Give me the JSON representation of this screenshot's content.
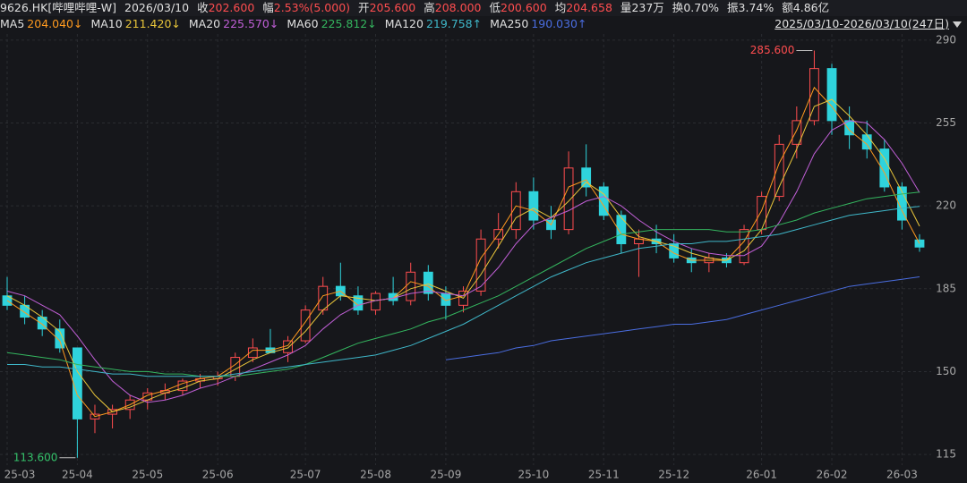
{
  "header": {
    "symbol": "9626.HK[哔哩哔哩-W]",
    "date": "2026/03/10",
    "items": [
      {
        "label": "收",
        "value": "202.600",
        "color": "#ff4d4f"
      },
      {
        "label": "幅",
        "value": "2.53%(5.000)",
        "color": "#ff4d4f"
      },
      {
        "label": "开",
        "value": "205.600",
        "color": "#ff4d4f"
      },
      {
        "label": "高",
        "value": "208.000",
        "color": "#ff4d4f"
      },
      {
        "label": "低",
        "value": "200.600",
        "color": "#ff4d4f"
      },
      {
        "label": "均",
        "value": "204.658",
        "color": "#ff4d4f"
      },
      {
        "label": "量",
        "value": "237万",
        "color": "#e0e0e0"
      },
      {
        "label": "换",
        "value": "0.70%",
        "color": "#e0e0e0"
      },
      {
        "label": "振",
        "value": "3.74%",
        "color": "#e0e0e0"
      },
      {
        "label": "额",
        "value": "4.86亿",
        "color": "#e0e0e0"
      }
    ],
    "range": "2025/03/10-2026/03/10(247日)"
  },
  "chart_data": {
    "type": "candlestick",
    "categories": [
      "25-03",
      null,
      null,
      null,
      "25-04",
      null,
      null,
      null,
      "25-05",
      null,
      null,
      null,
      "25-06",
      null,
      null,
      null,
      null,
      "25-07",
      null,
      null,
      null,
      "25-08",
      null,
      null,
      null,
      "25-09",
      null,
      null,
      null,
      null,
      "25-10",
      null,
      null,
      null,
      "25-11",
      null,
      null,
      null,
      "25-12",
      null,
      null,
      null,
      null,
      "26-01",
      null,
      null,
      null,
      "26-02",
      null,
      null,
      null,
      "26-03",
      null
    ],
    "open": [
      182,
      178,
      173,
      168,
      160,
      130,
      132,
      134,
      138,
      141,
      142,
      146,
      147,
      148,
      156,
      160,
      158,
      163,
      176,
      186,
      182,
      176,
      183,
      180,
      192,
      183,
      178,
      184,
      206,
      210,
      226,
      214,
      210,
      236,
      228,
      216,
      204,
      206,
      204,
      198,
      196,
      198,
      196,
      210,
      224,
      246,
      256,
      278,
      256,
      250,
      244,
      228,
      205.6
    ],
    "high": [
      190,
      182,
      176,
      172,
      160,
      136,
      136,
      140,
      143,
      145,
      147,
      149,
      150,
      158,
      164,
      168,
      165,
      178,
      190,
      196,
      186,
      184,
      190,
      196,
      195,
      186,
      186,
      210,
      217,
      230,
      232,
      220,
      243,
      246,
      230,
      218,
      210,
      212,
      208,
      202,
      200,
      200,
      212,
      226,
      250,
      262,
      285.6,
      280,
      262,
      256,
      248,
      230,
      208
    ],
    "low": [
      176,
      170,
      165,
      158,
      113.6,
      124,
      126,
      130,
      134,
      138,
      140,
      143,
      144,
      146,
      154,
      158,
      154,
      162,
      174,
      180,
      174,
      174,
      178,
      178,
      180,
      172,
      175,
      182,
      202,
      206,
      210,
      206,
      208,
      224,
      214,
      200,
      190,
      200,
      196,
      192,
      192,
      194,
      195,
      208,
      222,
      240,
      254,
      250,
      244,
      240,
      226,
      210,
      200.6
    ],
    "close": [
      178,
      173,
      168,
      160,
      130,
      132,
      134,
      138,
      141,
      142,
      146,
      147,
      148,
      156,
      160,
      158,
      163,
      176,
      186,
      182,
      176,
      183,
      180,
      192,
      183,
      178,
      184,
      206,
      210,
      226,
      214,
      210,
      236,
      228,
      216,
      204,
      206,
      204,
      198,
      196,
      198,
      196,
      210,
      224,
      246,
      256,
      278,
      256,
      250,
      244,
      228,
      214,
      202.6
    ],
    "up_color": "#ff4d4f",
    "down_color": "#2fd3dc",
    "ma": [
      {
        "name": "MA5",
        "legend_label": "204.040↓",
        "color": "#ff9a1f",
        "values": [
          180,
          175,
          170,
          163,
          140,
          131,
          133,
          136,
          140,
          142,
          145,
          147,
          148,
          153,
          159,
          159,
          161,
          171,
          182,
          184,
          178,
          180,
          181,
          188,
          186,
          180,
          182,
          198,
          208,
          220,
          218,
          212,
          228,
          231,
          220,
          208,
          206,
          205,
          200,
          197,
          197,
          197,
          205,
          218,
          238,
          252,
          270,
          262,
          252,
          246,
          234,
          218,
          204.04
        ]
      },
      {
        "name": "MA10",
        "legend_label": "211.420↓",
        "color": "#e8c53a",
        "values": [
          182,
          178,
          173,
          167,
          150,
          140,
          133,
          135,
          138,
          141,
          143,
          146,
          147,
          151,
          155,
          158,
          160,
          167,
          176,
          182,
          181,
          180,
          181,
          185,
          187,
          184,
          181,
          191,
          203,
          215,
          219,
          215,
          222,
          230,
          225,
          215,
          207,
          205,
          203,
          200,
          198,
          197,
          201,
          210,
          228,
          244,
          262,
          265,
          258,
          250,
          240,
          226,
          211.42
        ]
      },
      {
        "name": "MA20",
        "legend_label": "225.570↓",
        "color": "#c05fd6",
        "values": [
          184,
          182,
          178,
          174,
          165,
          155,
          146,
          140,
          137,
          138,
          140,
          143,
          145,
          148,
          151,
          154,
          157,
          161,
          168,
          174,
          178,
          180,
          181,
          183,
          184,
          183,
          182,
          186,
          194,
          204,
          212,
          215,
          218,
          222,
          224,
          220,
          214,
          209,
          205,
          202,
          200,
          199,
          199,
          203,
          213,
          226,
          242,
          252,
          256,
          255,
          248,
          238,
          225.57
        ]
      },
      {
        "name": "MA60",
        "legend_label": "225.812↓",
        "color": "#34b65f",
        "values": [
          158,
          157,
          156,
          155,
          153,
          152,
          151,
          150,
          150,
          149,
          149,
          148,
          148,
          148,
          149,
          150,
          151,
          153,
          156,
          159,
          162,
          164,
          166,
          168,
          171,
          173,
          176,
          179,
          182,
          186,
          190,
          194,
          198,
          202,
          205,
          208,
          209,
          210,
          210,
          210,
          210,
          209,
          209,
          210,
          212,
          214,
          217,
          219,
          221,
          223,
          224,
          225,
          225.812
        ]
      },
      {
        "name": "MA120",
        "legend_label": "219.758↑",
        "color": "#3fb7c9",
        "values": [
          153,
          153,
          152,
          152,
          151,
          150,
          149,
          149,
          148,
          148,
          148,
          148,
          148,
          149,
          150,
          151,
          152,
          153,
          154,
          155,
          156,
          157,
          159,
          161,
          164,
          167,
          170,
          174,
          178,
          182,
          186,
          190,
          193,
          196,
          198,
          200,
          202,
          203,
          204,
          204,
          205,
          205,
          206,
          207,
          208,
          210,
          212,
          214,
          216,
          217,
          218,
          219,
          219.758
        ]
      },
      {
        "name": "MA250",
        "legend_label": "190.030↑",
        "color": "#4a6de0",
        "values": [
          null,
          null,
          null,
          null,
          null,
          null,
          null,
          null,
          null,
          null,
          null,
          null,
          null,
          null,
          null,
          null,
          null,
          null,
          null,
          null,
          null,
          null,
          null,
          null,
          null,
          155,
          156,
          157,
          158,
          160,
          161,
          163,
          164,
          165,
          166,
          167,
          168,
          169,
          170,
          170,
          171,
          172,
          174,
          176,
          178,
          180,
          182,
          184,
          186,
          187,
          188,
          189,
          190.03
        ]
      }
    ],
    "annotations": [
      {
        "label": "285.600",
        "value": 285.6,
        "color": "#ff4d4f"
      },
      {
        "label": "113.600",
        "value": 113.6,
        "color": "#34c26a"
      }
    ],
    "ylim": [
      110.5,
      292.6
    ],
    "yticks": [
      115,
      150,
      185,
      220,
      255,
      290
    ],
    "grid": true
  }
}
